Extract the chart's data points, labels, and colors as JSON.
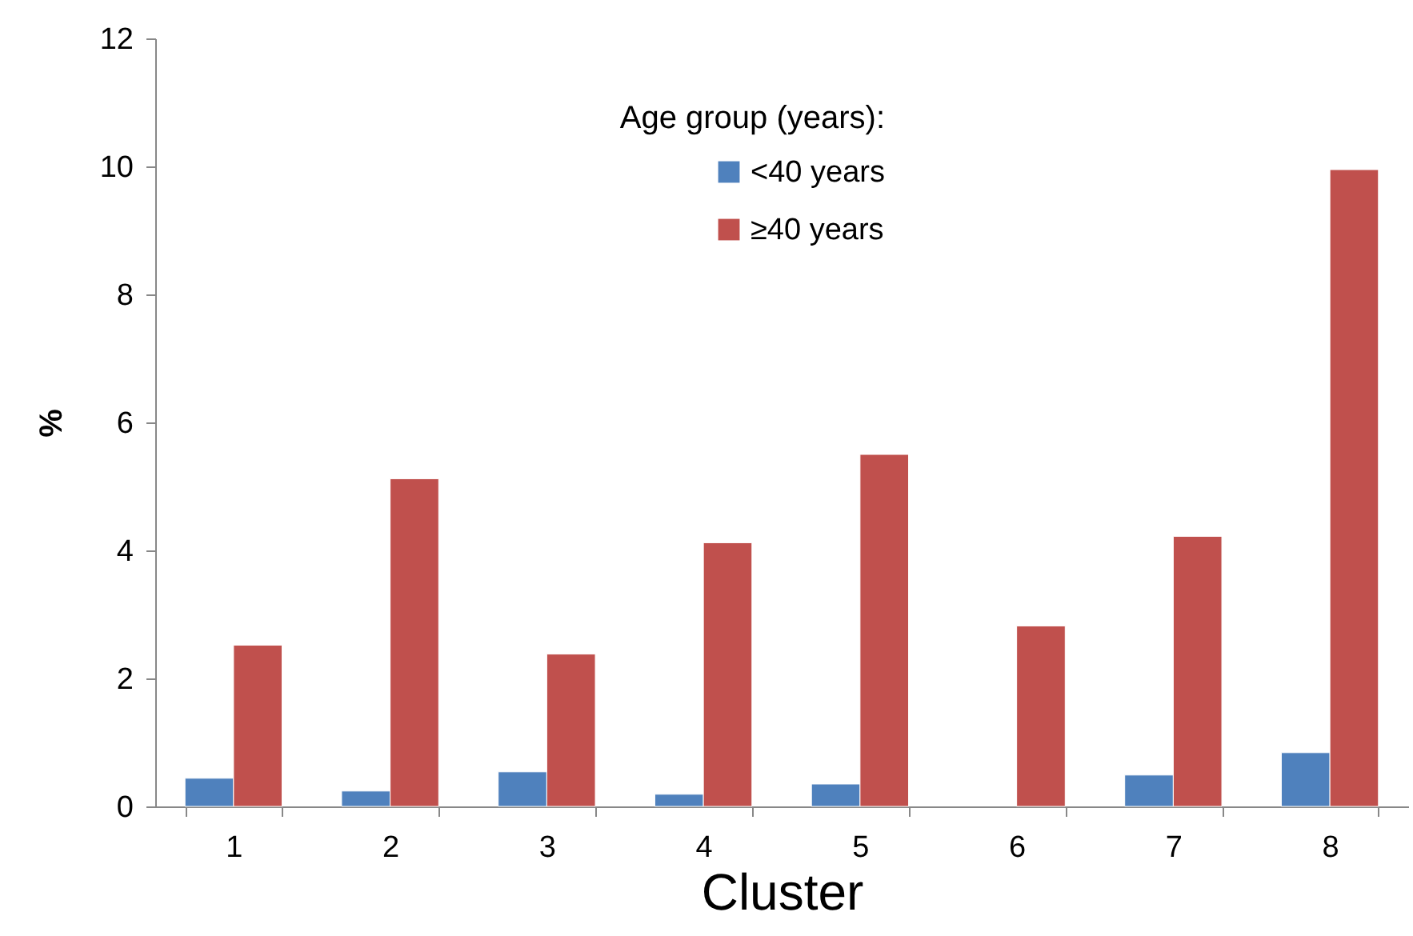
{
  "chart_data": {
    "type": "bar",
    "categories": [
      "1",
      "2",
      "3",
      "4",
      "5",
      "6",
      "7",
      "8"
    ],
    "xlabel": "Cluster",
    "ylabel": "%",
    "legend_title": "Age group (years):",
    "series": [
      {
        "name": "<40 years",
        "color": "#4f81bd",
        "values": [
          0.44,
          0.24,
          0.54,
          0.19,
          0.35,
          null,
          0.49,
          0.84
        ]
      },
      {
        "name": "≥40 years",
        "color": "#c0504d",
        "values": [
          2.52,
          5.12,
          2.38,
          4.12,
          5.5,
          2.82,
          4.22,
          9.95
        ]
      }
    ],
    "ylim": [
      0,
      12
    ],
    "yticks": [
      0,
      2,
      4,
      6,
      8,
      10,
      12
    ],
    "grid": false,
    "legend": "top right"
  }
}
